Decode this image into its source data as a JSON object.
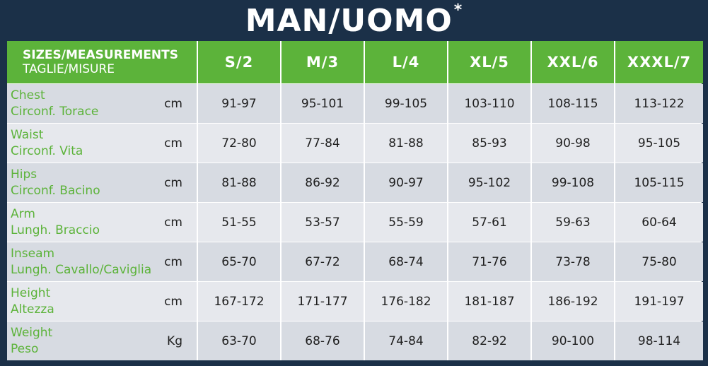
{
  "title": {
    "text": "MAN/UOMO",
    "asterisk": "*"
  },
  "header": {
    "label_line1": "SIZES/MEASUREMENTS",
    "label_line2": "TAGLIE/MISURE",
    "sizes": [
      "S/2",
      "M/3",
      "L/4",
      "XL/5",
      "XXL/6",
      "XXXL/7"
    ]
  },
  "rows": [
    {
      "label_en": "Chest",
      "label_it": "Circonf. Torace",
      "unit": "cm",
      "values": [
        "91-97",
        "95-101",
        "99-105",
        "103-110",
        "108-115",
        "113-122"
      ]
    },
    {
      "label_en": "Waist",
      "label_it": "Circonf. Vita",
      "unit": "cm",
      "values": [
        "72-80",
        "77-84",
        "81-88",
        "85-93",
        "90-98",
        "95-105"
      ]
    },
    {
      "label_en": "Hips",
      "label_it": "Circonf. Bacino",
      "unit": "cm",
      "values": [
        "81-88",
        "86-92",
        "90-97",
        "95-102",
        "99-108",
        "105-115"
      ]
    },
    {
      "label_en": "Arm",
      "label_it": "Lungh. Braccio",
      "unit": "cm",
      "values": [
        "51-55",
        "53-57",
        "55-59",
        "57-61",
        "59-63",
        "60-64"
      ]
    },
    {
      "label_en": "Inseam",
      "label_it": "Lungh. Cavallo/Caviglia",
      "unit": "cm",
      "values": [
        "65-70",
        "67-72",
        "68-74",
        "71-76",
        "73-78",
        "75-80"
      ]
    },
    {
      "label_en": "Height",
      "label_it": "Altezza",
      "unit": "cm",
      "values": [
        "167-172",
        "171-177",
        "176-182",
        "181-187",
        "186-192",
        "191-197"
      ]
    },
    {
      "label_en": "Weight",
      "label_it": "Peso",
      "unit": "Kg",
      "values": [
        "63-70",
        "68-76",
        "74-84",
        "82-92",
        "90-100",
        "98-114"
      ]
    }
  ],
  "colors": {
    "background": "#1b3048",
    "header_green": "#5cb33a",
    "cell_gray": "#d7dbe2",
    "label_green": "#5cb33a"
  }
}
